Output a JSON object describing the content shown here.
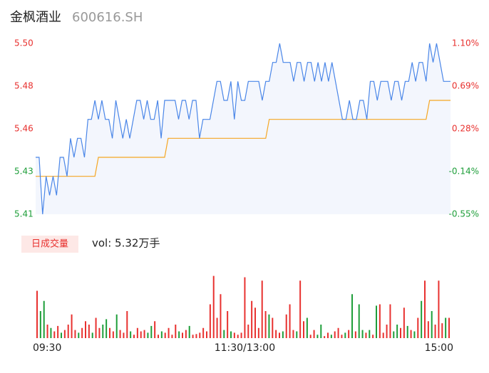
{
  "header": {
    "name": "金枫酒业",
    "code": "600616.SH"
  },
  "chart_data": [
    {
      "type": "line",
      "xlim": [
        0,
        119
      ],
      "ylim": [
        5.41,
        5.5
      ],
      "yticks": [
        5.41,
        {
          "value": 5.4325,
          "label": "5.43"
        },
        {
          "value": 5.455,
          "label": "5.46"
        },
        {
          "value": 5.4775,
          "label": "5.48"
        },
        {
          "value": 5.5,
          "label": "5.50"
        }
      ],
      "y2lim": [
        -0.55,
        1.1
      ],
      "y2ticks": [
        {
          "value": -0.55,
          "label": "-0.55%"
        },
        {
          "value": -0.1375,
          "label": "-0.14%"
        },
        {
          "value": 0.275,
          "label": "0.28%"
        },
        {
          "value": 0.6875,
          "label": "0.69%"
        },
        {
          "value": 1.1,
          "label": "1.10%"
        }
      ],
      "up_color": "#e8312f",
      "down_color": "#1e9e3a",
      "flat_color": "#999999",
      "series": [
        {
          "color": "#4a86e8",
          "values": [
            5.44,
            5.44,
            5.41,
            5.43,
            5.42,
            5.43,
            5.42,
            5.44,
            5.44,
            5.43,
            5.45,
            5.44,
            5.45,
            5.45,
            5.44,
            5.46,
            5.46,
            5.47,
            5.46,
            5.47,
            5.46,
            5.46,
            5.45,
            5.47,
            5.46,
            5.45,
            5.46,
            5.45,
            5.46,
            5.47,
            5.47,
            5.46,
            5.47,
            5.46,
            5.46,
            5.47,
            5.45,
            5.47,
            5.47,
            5.47,
            5.47,
            5.46,
            5.47,
            5.47,
            5.46,
            5.47,
            5.47,
            5.45,
            5.46,
            5.46,
            5.46,
            5.47,
            5.48,
            5.48,
            5.47,
            5.47,
            5.48,
            5.46,
            5.48,
            5.47,
            5.47,
            5.48,
            5.48,
            5.48,
            5.48,
            5.47,
            5.48,
            5.48,
            5.49,
            5.49,
            5.5,
            5.49,
            5.49,
            5.49,
            5.48,
            5.49,
            5.49,
            5.48,
            5.49,
            5.49,
            5.48,
            5.49,
            5.48,
            5.49,
            5.48,
            5.49,
            5.48,
            5.47,
            5.46,
            5.46,
            5.47,
            5.46,
            5.46,
            5.47,
            5.47,
            5.46,
            5.48,
            5.48,
            5.47,
            5.48,
            5.48,
            5.48,
            5.47,
            5.48,
            5.48,
            5.47,
            5.48,
            5.48,
            5.49,
            5.48,
            5.49,
            5.49,
            5.48,
            5.5,
            5.49,
            5.5,
            5.49,
            5.48,
            5.48,
            5.48
          ]
        },
        {
          "color": "#f5a623",
          "values": [
            5.43,
            5.43,
            5.43,
            5.43,
            5.43,
            5.43,
            5.43,
            5.43,
            5.43,
            5.43,
            5.43,
            5.43,
            5.43,
            5.43,
            5.43,
            5.43,
            5.43,
            5.43,
            5.44,
            5.44,
            5.44,
            5.44,
            5.44,
            5.44,
            5.44,
            5.44,
            5.44,
            5.44,
            5.44,
            5.44,
            5.44,
            5.44,
            5.44,
            5.44,
            5.44,
            5.44,
            5.44,
            5.44,
            5.45,
            5.45,
            5.45,
            5.45,
            5.45,
            5.45,
            5.45,
            5.45,
            5.45,
            5.45,
            5.45,
            5.45,
            5.45,
            5.45,
            5.45,
            5.45,
            5.45,
            5.45,
            5.45,
            5.45,
            5.45,
            5.45,
            5.45,
            5.45,
            5.45,
            5.45,
            5.45,
            5.45,
            5.45,
            5.46,
            5.46,
            5.46,
            5.46,
            5.46,
            5.46,
            5.46,
            5.46,
            5.46,
            5.46,
            5.46,
            5.46,
            5.46,
            5.46,
            5.46,
            5.46,
            5.46,
            5.46,
            5.46,
            5.46,
            5.46,
            5.46,
            5.46,
            5.46,
            5.46,
            5.46,
            5.46,
            5.46,
            5.46,
            5.46,
            5.46,
            5.46,
            5.46,
            5.46,
            5.46,
            5.46,
            5.46,
            5.46,
            5.46,
            5.46,
            5.46,
            5.46,
            5.46,
            5.46,
            5.46,
            5.46,
            5.47,
            5.47,
            5.47,
            5.47,
            5.47,
            5.47,
            5.47
          ]
        }
      ]
    },
    {
      "type": "bar",
      "badge": "日成交量",
      "volume_label": "vol: 5.32万手",
      "xlim": [
        0,
        119
      ],
      "ylim": [
        0,
        100
      ],
      "xticks": [
        {
          "value": 0,
          "label": "09:30"
        },
        {
          "value": 60,
          "label": "11:30/13:00"
        },
        {
          "value": 119,
          "label": "15:00"
        }
      ],
      "series": [
        {
          "color": "#e8312f",
          "values": [
            70,
            null,
            null,
            20,
            null,
            10,
            18,
            null,
            12,
            20,
            35,
            12,
            null,
            15,
            25,
            20,
            null,
            30,
            15,
            null,
            null,
            15,
            10,
            null,
            12,
            8,
            40,
            null,
            5,
            15,
            10,
            12,
            null,
            null,
            25,
            5,
            null,
            8,
            15,
            5,
            20,
            null,
            8,
            12,
            null,
            5,
            6,
            8,
            15,
            10,
            50,
            92,
            30,
            65,
            null,
            40,
            null,
            8,
            5,
            8,
            90,
            20,
            55,
            45,
            15,
            85,
            40,
            null,
            30,
            12,
            8,
            null,
            35,
            50,
            12,
            null,
            85,
            25,
            null,
            5,
            12,
            null,
            null,
            3,
            8,
            null,
            10,
            15,
            5,
            null,
            12,
            null,
            10,
            null,
            null,
            8,
            null,
            5,
            null,
            50,
            8,
            20,
            50,
            null,
            null,
            15,
            45,
            null,
            12,
            null,
            30,
            null,
            85,
            25,
            null,
            20,
            85,
            22,
            null,
            30
          ]
        },
        {
          "color": "#1e9e3a",
          "values": [
            null,
            40,
            55,
            null,
            15,
            null,
            null,
            8,
            null,
            null,
            null,
            null,
            8,
            null,
            null,
            null,
            8,
            null,
            null,
            20,
            28,
            null,
            null,
            35,
            null,
            null,
            null,
            10,
            null,
            null,
            null,
            null,
            8,
            18,
            null,
            null,
            10,
            null,
            null,
            null,
            null,
            10,
            null,
            null,
            18,
            null,
            null,
            null,
            null,
            null,
            null,
            null,
            null,
            null,
            12,
            null,
            10,
            null,
            null,
            null,
            null,
            null,
            null,
            null,
            null,
            null,
            null,
            35,
            null,
            null,
            null,
            10,
            null,
            null,
            null,
            10,
            null,
            null,
            30,
            null,
            null,
            5,
            20,
            null,
            null,
            5,
            null,
            null,
            null,
            8,
            null,
            65,
            null,
            50,
            12,
            null,
            12,
            null,
            48,
            null,
            null,
            null,
            null,
            10,
            20,
            null,
            null,
            18,
            null,
            10,
            null,
            55,
            null,
            null,
            40,
            null,
            null,
            null,
            30,
            null
          ]
        }
      ]
    }
  ]
}
